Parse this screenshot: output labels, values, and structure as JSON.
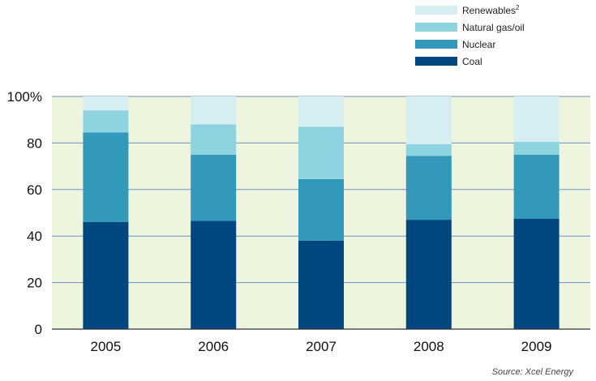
{
  "chart_data": {
    "type": "bar",
    "stacked": true,
    "categories": [
      "2005",
      "2006",
      "2007",
      "2008",
      "2009"
    ],
    "series": [
      {
        "name": "Coal",
        "color": "#00477f",
        "values": [
          46,
          46.5,
          38,
          47,
          47.5
        ]
      },
      {
        "name": "Nuclear",
        "color": "#3399bb",
        "values": [
          38.5,
          28.5,
          26.5,
          27.5,
          27.5
        ]
      },
      {
        "name": "Natural gas/oil",
        "color": "#8ed3e0",
        "values": [
          9.5,
          13,
          22.5,
          5,
          5.5
        ]
      },
      {
        "name": "Renewables",
        "name_superscript": "2",
        "color": "#d7eef2",
        "values": [
          6,
          12,
          13,
          20.5,
          19.5
        ]
      }
    ],
    "y_ticks": [
      "0",
      "20",
      "40",
      "60",
      "80",
      "100%"
    ],
    "y_tick_values": [
      0,
      20,
      40,
      60,
      80,
      100
    ],
    "ylim": [
      0,
      100
    ],
    "legend_order": [
      "Renewables",
      "Natural gas/oil",
      "Nuclear",
      "Coal"
    ],
    "legend_position": "top-right",
    "grid": true,
    "background_color": "#eef5de",
    "gridline_color": "#6f8fbf",
    "source": "Source: Xcel Energy"
  }
}
